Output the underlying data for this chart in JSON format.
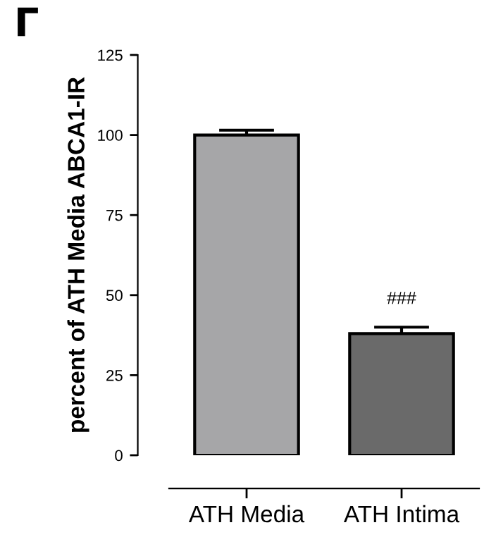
{
  "chart_data": {
    "type": "bar",
    "ylabel": "percent of ATH Media ABCA1-IR",
    "categories": [
      "ATH Media",
      "ATH Intima"
    ],
    "values": [
      100,
      38
    ],
    "colors": [
      "#a6a6a8",
      "#6a6a6a"
    ],
    "errors": [
      1.5,
      2
    ],
    "ylim": [
      0,
      125
    ],
    "yticks": [
      0,
      25,
      50,
      75,
      100,
      125
    ],
    "grid": false,
    "legend": false,
    "annotations": [
      "Г",
      "###"
    ]
  }
}
